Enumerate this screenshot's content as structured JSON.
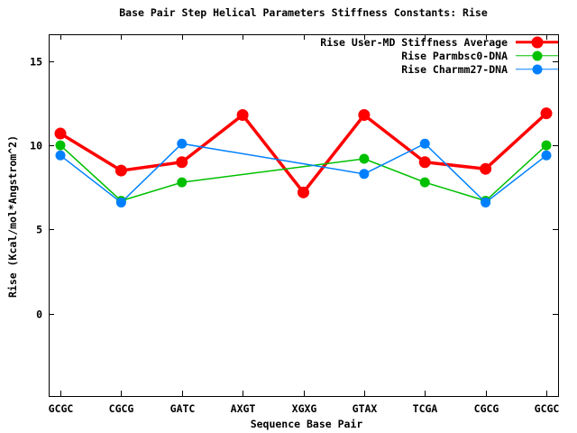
{
  "chart_data": {
    "type": "line",
    "title": "Base Pair Step Helical Parameters Stiffness Constants: Rise",
    "xlabel": "Sequence Base Pair",
    "ylabel": "Rise (Kcal/mol*Angstrom^2)",
    "categories": [
      "GCGC",
      "CGCG",
      "GATC",
      "AXGT",
      "XGXG",
      "GTAX",
      "TCGA",
      "CGCG",
      "GCGC"
    ],
    "yticks": [
      0,
      5,
      10,
      15
    ],
    "ylim": [
      -4.9,
      16.6
    ],
    "grid": false,
    "legend_position": "top-right-inside",
    "border_color": "#000000",
    "background_color": "#ffffff",
    "series": [
      {
        "name": "Rise User-MD Stiffness Average",
        "color": "#ff0000",
        "line_width": 3.5,
        "marker": "filled-circle",
        "marker_size": 13,
        "values": [
          10.7,
          8.5,
          9.0,
          11.8,
          7.2,
          11.8,
          9.0,
          8.6,
          11.9
        ]
      },
      {
        "name": "Rise Parmbsc0-DNA",
        "color": "#00c000",
        "line_width": 1.5,
        "marker": "filled-circle",
        "marker_size": 11,
        "values": [
          10.0,
          6.7,
          7.8,
          null,
          null,
          9.2,
          7.8,
          6.7,
          10.0
        ]
      },
      {
        "name": "Rise Charmm27-DNA",
        "color": "#0080ff",
        "line_width": 1.5,
        "marker": "filled-circle",
        "marker_size": 11,
        "values": [
          9.4,
          6.6,
          10.1,
          null,
          null,
          8.3,
          10.1,
          6.6,
          9.4
        ]
      }
    ]
  }
}
